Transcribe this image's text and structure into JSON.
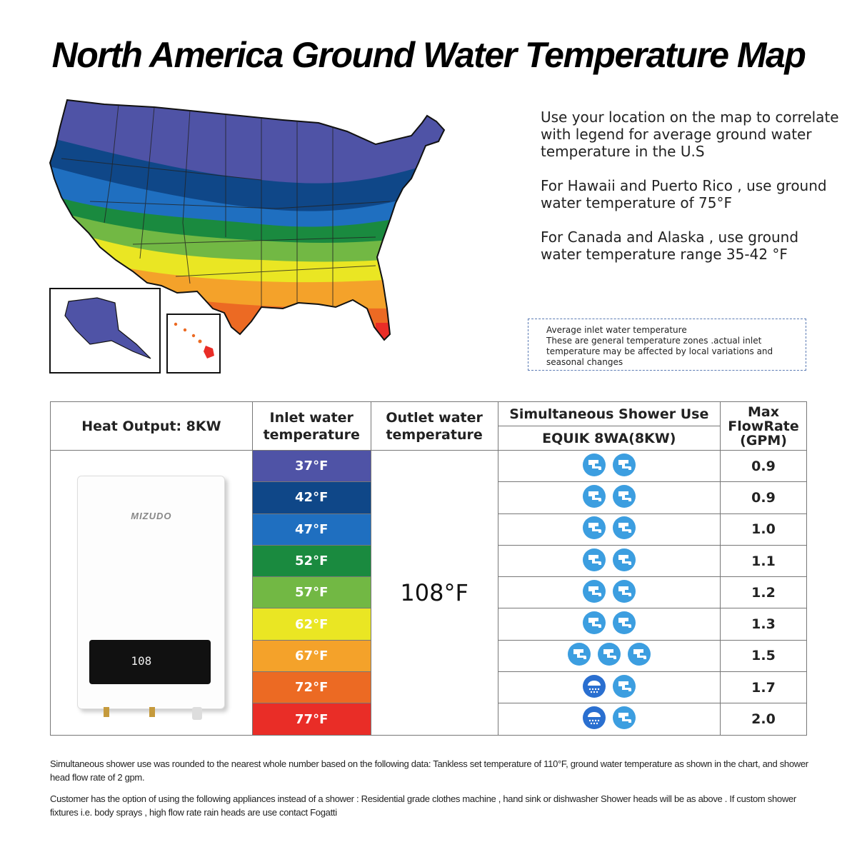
{
  "title": "North America Ground Water Temperature Map",
  "info": {
    "p1": "Use your location on the map to correlate with legend for average ground water temperature in the U.S",
    "p2": "For Hawaii and Puerto Rico , use ground water temperature of 75°F",
    "p3": "For Canada and Alaska , use ground water temperature range 35-42 °F"
  },
  "note": {
    "line1": "Average inlet water temperature",
    "line2": "These are general temperature zones .actual inlet temperature may be affected by local variations and seasonal changes"
  },
  "table": {
    "h_heat": "Heat Output: 8KW",
    "h_inlet": "Inlet water temperature",
    "h_outlet": "Outlet water temperature",
    "h_shower": "Simultaneous Shower Use",
    "h_model": "EQUIK 8WA(8KW)",
    "h_max": "Max FlowRate (GPM)",
    "outlet_value": "108°F",
    "product": {
      "brand": "MIZUDO",
      "display": "108"
    },
    "rows": [
      {
        "inlet": "37°F",
        "color": "#4f53a6",
        "icons": [
          "faucet",
          "faucet"
        ],
        "rate": "0.9"
      },
      {
        "inlet": "42°F",
        "color": "#0f4788",
        "icons": [
          "faucet",
          "faucet"
        ],
        "rate": "0.9"
      },
      {
        "inlet": "47°F",
        "color": "#1f6fc0",
        "icons": [
          "faucet",
          "faucet"
        ],
        "rate": "1.0"
      },
      {
        "inlet": "52°F",
        "color": "#1a8a3f",
        "icons": [
          "faucet",
          "faucet"
        ],
        "rate": "1.1"
      },
      {
        "inlet": "57°F",
        "color": "#72b844",
        "icons": [
          "faucet",
          "faucet"
        ],
        "rate": "1.2"
      },
      {
        "inlet": "62°F",
        "color": "#eae623",
        "icons": [
          "faucet",
          "faucet"
        ],
        "rate": "1.3"
      },
      {
        "inlet": "67°F",
        "color": "#f4a22a",
        "icons": [
          "faucet",
          "faucet",
          "faucet"
        ],
        "rate": "1.5"
      },
      {
        "inlet": "72°F",
        "color": "#ec6a23",
        "icons": [
          "shower",
          "faucet"
        ],
        "rate": "1.7"
      },
      {
        "inlet": "77°F",
        "color": "#e92d27",
        "icons": [
          "shower",
          "faucet"
        ],
        "rate": "2.0"
      }
    ]
  },
  "footnote1": "Simultaneous shower use was rounded to the nearest whole number based on the following data: Tankless set temperature of 110°F, ground water temperature as shown in the chart, and shower head flow rate of 2 gpm.",
  "footnote2": "Customer has the option of using the following appliances instead of a shower : Residential grade clothes machine , hand sink or dishwasher Shower heads will be as above . If custom shower fixtures i.e. body sprays , high flow rate rain heads are use contact Fogatti"
}
